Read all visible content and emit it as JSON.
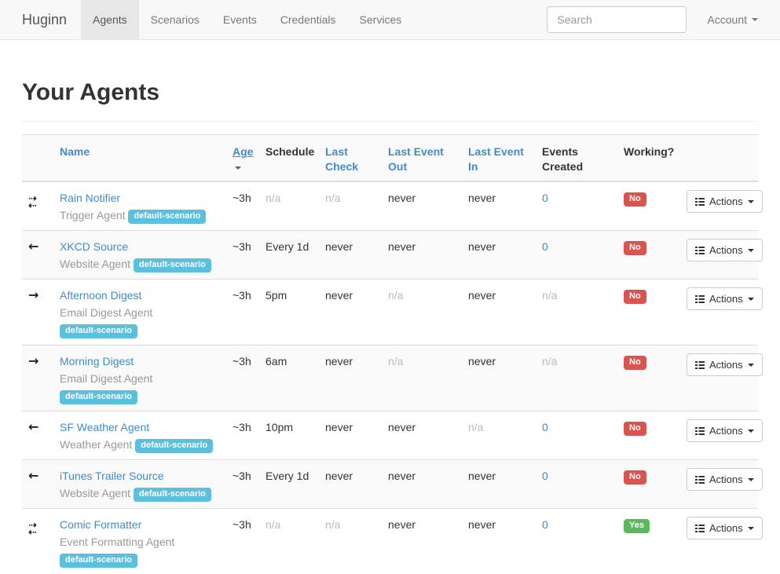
{
  "colors": {
    "link": "#428bca",
    "info": "#5bc0de",
    "danger": "#d9534f",
    "success": "#5cb85c"
  },
  "navbar": {
    "brand": "Huginn",
    "items": [
      {
        "label": "Agents",
        "active": true
      },
      {
        "label": "Scenarios",
        "active": false
      },
      {
        "label": "Events",
        "active": false
      },
      {
        "label": "Credentials",
        "active": false
      },
      {
        "label": "Services",
        "active": false
      }
    ],
    "search_placeholder": "Search",
    "account_label": "Account"
  },
  "page": {
    "title": "Your Agents"
  },
  "table": {
    "columns": [
      {
        "key": "name",
        "label": "Name",
        "link": true
      },
      {
        "key": "age",
        "label": "Age",
        "link": true,
        "sorted": "desc"
      },
      {
        "key": "schedule",
        "label": "Schedule",
        "link": false
      },
      {
        "key": "last_check",
        "label": "Last Check",
        "link": true
      },
      {
        "key": "last_event_out",
        "label": "Last Event Out",
        "link": true
      },
      {
        "key": "last_event_in",
        "label": "Last Event In",
        "link": true
      },
      {
        "key": "events_created",
        "label": "Events Created",
        "link": false
      },
      {
        "key": "working",
        "label": "Working?",
        "link": false
      }
    ],
    "actions_label": "Actions",
    "agents": [
      {
        "icon": "exchange",
        "name": "Rain Notifier",
        "type": "Trigger Agent",
        "scenario": "default-scenario",
        "age": "~3h",
        "schedule": "n/a",
        "last_check": "n/a",
        "last_event_out": "never",
        "last_event_in": "never",
        "events_created": "0",
        "working": "No"
      },
      {
        "icon": "arrow-left",
        "name": "XKCD Source",
        "type": "Website Agent",
        "scenario": "default-scenario",
        "age": "~3h",
        "schedule": "Every 1d",
        "last_check": "never",
        "last_event_out": "never",
        "last_event_in": "never",
        "events_created": "0",
        "working": "No"
      },
      {
        "icon": "arrow-right",
        "name": "Afternoon Digest",
        "type": "Email Digest Agent",
        "scenario": "default-scenario",
        "age": "~3h",
        "schedule": "5pm",
        "last_check": "never",
        "last_event_out": "n/a",
        "last_event_in": "never",
        "events_created": "n/a",
        "working": "No"
      },
      {
        "icon": "arrow-right",
        "name": "Morning Digest",
        "type": "Email Digest Agent",
        "scenario": "default-scenario",
        "age": "~3h",
        "schedule": "6am",
        "last_check": "never",
        "last_event_out": "n/a",
        "last_event_in": "never",
        "events_created": "n/a",
        "working": "No"
      },
      {
        "icon": "arrow-left",
        "name": "SF Weather Agent",
        "type": "Weather Agent",
        "scenario": "default-scenario",
        "age": "~3h",
        "schedule": "10pm",
        "last_check": "never",
        "last_event_out": "never",
        "last_event_in": "n/a",
        "events_created": "0",
        "working": "No"
      },
      {
        "icon": "arrow-left",
        "name": "iTunes Trailer Source",
        "type": "Website Agent",
        "scenario": "default-scenario",
        "age": "~3h",
        "schedule": "Every 1d",
        "last_check": "never",
        "last_event_out": "never",
        "last_event_in": "never",
        "events_created": "0",
        "working": "No"
      },
      {
        "icon": "exchange",
        "name": "Comic Formatter",
        "type": "Event Formatting Agent",
        "scenario": "default-scenario",
        "age": "~3h",
        "schedule": "n/a",
        "last_check": "n/a",
        "last_event_out": "never",
        "last_event_in": "never",
        "events_created": "0",
        "working": "Yes"
      }
    ]
  }
}
